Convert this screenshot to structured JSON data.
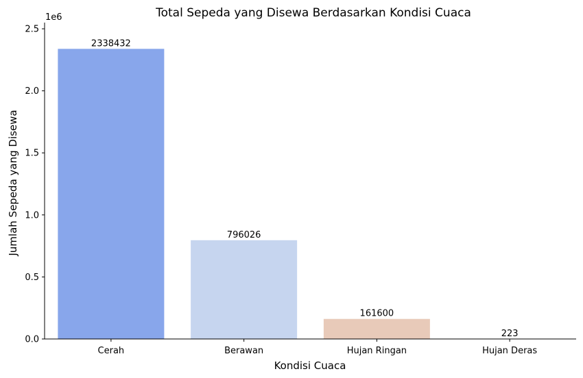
{
  "chart_data": {
    "type": "bar",
    "title": "Total Sepeda yang Disewa Berdasarkan Kondisi Cuaca",
    "xlabel": "Kondisi Cuaca",
    "ylabel": "Jumlah Sepeda yang Disewa",
    "y_multiplier_label": "1e6",
    "categories": [
      "Cerah",
      "Berawan",
      "Hujan Ringan",
      "Hujan Deras"
    ],
    "values": [
      2338432,
      796026,
      161600,
      223
    ],
    "value_labels": [
      "2338432",
      "796026",
      "161600",
      "223"
    ],
    "colors": [
      "#88a6eb",
      "#c6d5ef",
      "#e8cab9",
      "#f09f81"
    ],
    "ylim": [
      0,
      2550000
    ],
    "yticks": [
      0,
      500000,
      1000000,
      1500000,
      2000000,
      2500000
    ],
    "ytick_labels": [
      "0.0",
      "0.5",
      "1.0",
      "1.5",
      "2.0",
      "2.5"
    ],
    "grid": false,
    "legend": "none"
  }
}
